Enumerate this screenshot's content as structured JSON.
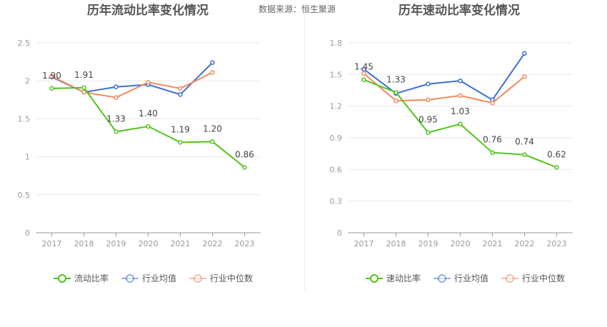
{
  "source": "数据来源：恒生聚源",
  "colors": {
    "company": "#52c41a",
    "industry_avg": "#3b6fd8",
    "industry_median": "#f08a5d",
    "grid": "#e6e9f2",
    "axis": "#999999"
  },
  "chart_data": [
    {
      "type": "line",
      "title": "历年流动比率变化情况",
      "categories": [
        "2017",
        "2018",
        "2019",
        "2020",
        "2021",
        "2022",
        "2023"
      ],
      "ylim": [
        0,
        2.5
      ],
      "yticks": [
        "0",
        "0.5",
        "1",
        "1.5",
        "2",
        "2.5"
      ],
      "legend_position": "bottom",
      "series": [
        {
          "name": "流动比率",
          "color_key": "company",
          "values": [
            1.9,
            1.91,
            1.33,
            1.4,
            1.19,
            1.2,
            0.86
          ],
          "labels": [
            "1.90",
            "1.91",
            "1.33",
            "1.40",
            "1.19",
            "1.20",
            "0.86"
          ]
        },
        {
          "name": "行业均值",
          "color_key": "industry_avg",
          "values": [
            2.05,
            1.85,
            1.92,
            1.95,
            1.82,
            2.24,
            null
          ]
        },
        {
          "name": "行业中位数",
          "color_key": "industry_median",
          "values": [
            2.06,
            1.85,
            1.78,
            1.98,
            1.9,
            2.11,
            null
          ]
        }
      ]
    },
    {
      "type": "line",
      "title": "历年速动比率变化情况",
      "categories": [
        "2017",
        "2018",
        "2019",
        "2020",
        "2021",
        "2022",
        "2023"
      ],
      "ylim": [
        0,
        1.8
      ],
      "yticks": [
        "0",
        "0.3",
        "0.6",
        "0.9",
        "1.2",
        "1.5",
        "1.8"
      ],
      "legend_position": "bottom",
      "series": [
        {
          "name": "速动比率",
          "color_key": "company",
          "values": [
            1.45,
            1.33,
            0.95,
            1.03,
            0.76,
            0.74,
            0.62
          ],
          "labels": [
            "1.45",
            "1.33",
            "0.95",
            "1.03",
            "0.76",
            "0.74",
            "0.62"
          ]
        },
        {
          "name": "行业均值",
          "color_key": "industry_avg",
          "values": [
            1.55,
            1.32,
            1.41,
            1.44,
            1.26,
            1.7,
            null
          ]
        },
        {
          "name": "行业中位数",
          "color_key": "industry_median",
          "values": [
            1.51,
            1.25,
            1.26,
            1.3,
            1.23,
            1.48,
            null
          ]
        }
      ]
    }
  ]
}
